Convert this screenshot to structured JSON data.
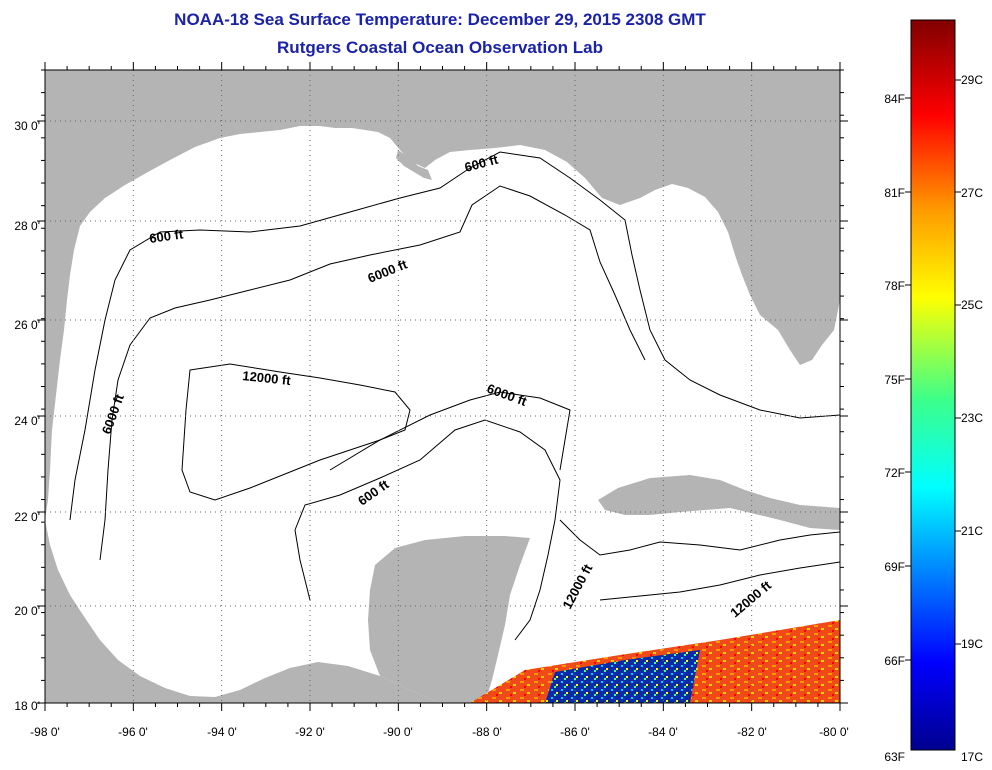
{
  "title": "NOAA-18 Sea Surface Temperature:  December 29, 2015 2308 GMT",
  "subtitle": "Rutgers Coastal Ocean Observation Lab",
  "lon_labels": [
    "-98 0'",
    "-96 0'",
    "-94 0'",
    "-92 0'",
    "-90 0'",
    "-88 0'",
    "-86 0'",
    "-84 0'",
    "-82 0'",
    "-80 0'"
  ],
  "lat_labels": [
    "30 0'",
    "28 0'",
    "26 0'",
    "24 0'",
    "22 0'",
    "20 0'",
    "18 0'"
  ],
  "contour_labels": [
    "600 ft",
    "600 ft",
    "6000 ft",
    "6000 ft",
    "6000 ft",
    "12000 ft",
    "600 ft",
    "12000 ft",
    "12000 ft"
  ],
  "colorbar": {
    "fahrenheit_labels": [
      "84F",
      "81F",
      "78F",
      "75F",
      "72F",
      "69F",
      "66F",
      "63F"
    ],
    "celsius_labels": [
      "29C",
      "27C",
      "25C",
      "23C",
      "21C",
      "19C",
      "17C"
    ]
  },
  "colors": {
    "title": "#1a22a8",
    "land": "#b4b4b4",
    "ocean": "#ffffff",
    "contour": "#000000",
    "grid": "#666666"
  }
}
